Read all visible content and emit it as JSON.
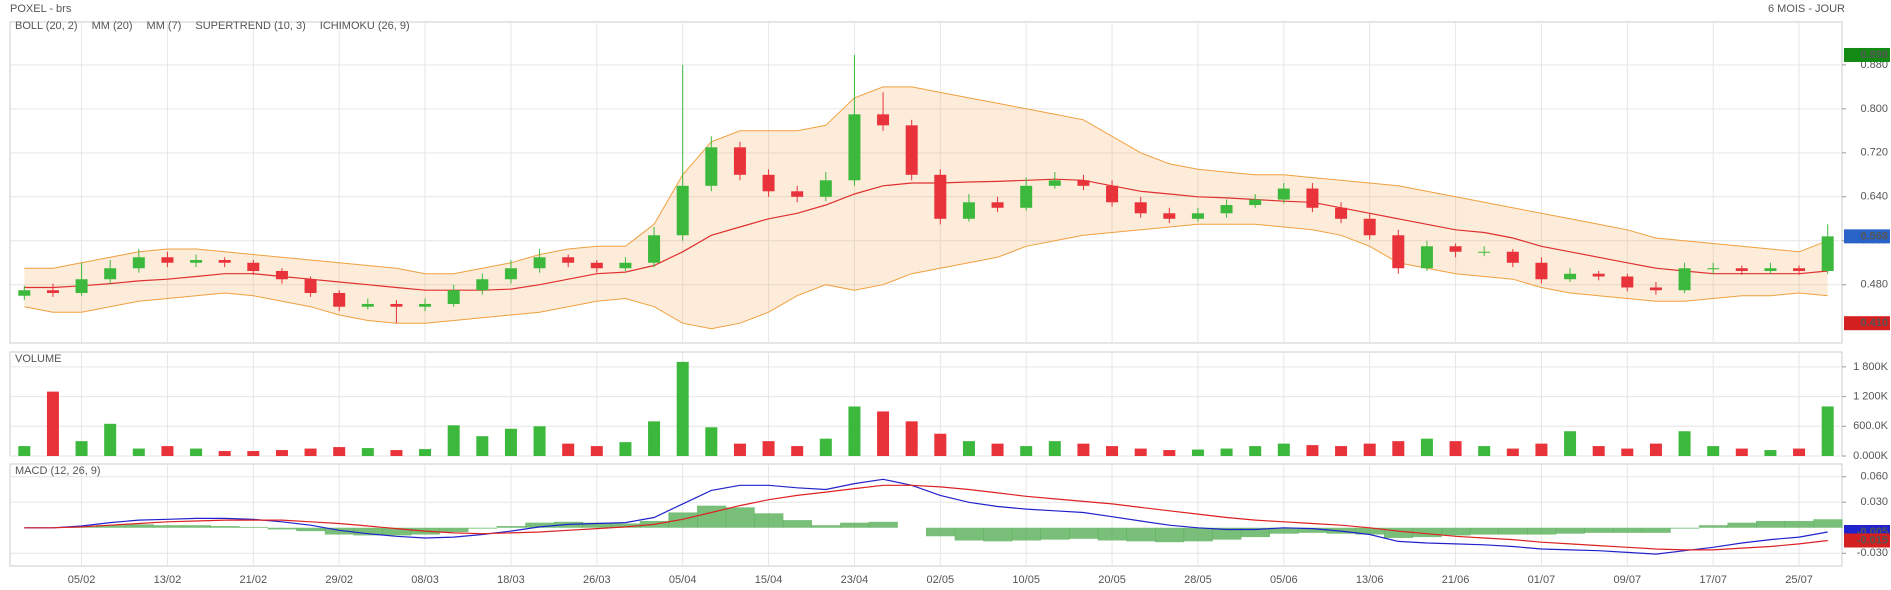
{
  "header": {
    "title": "POXEL - brs",
    "period": "6 MOIS - JOUR"
  },
  "chart_data": [
    {
      "type": "candlestick",
      "categories": [
        null,
        null,
        "05/02",
        null,
        null,
        "13/02",
        null,
        null,
        "21/02",
        null,
        null,
        "29/02",
        null,
        null,
        "08/03",
        null,
        null,
        "18/03",
        null,
        null,
        "26/03",
        null,
        null,
        "05/04",
        null,
        null,
        "15/04",
        null,
        null,
        "23/04",
        null,
        null,
        "02/05",
        null,
        null,
        "10/05",
        null,
        null,
        "20/05",
        null,
        null,
        "28/05",
        null,
        null,
        "05/06",
        null,
        null,
        "13/06",
        null,
        null,
        "21/06",
        null,
        null,
        "01/07",
        null,
        null,
        "09/07",
        null,
        null,
        "17/07",
        null,
        null,
        "25/07",
        null
      ],
      "open": [
        0.46,
        0.47,
        0.465,
        0.49,
        0.51,
        0.53,
        0.52,
        0.525,
        0.52,
        0.505,
        0.49,
        0.465,
        0.44,
        0.445,
        0.44,
        0.445,
        0.47,
        0.49,
        0.51,
        0.53,
        0.52,
        0.51,
        0.52,
        0.57,
        0.66,
        0.73,
        0.68,
        0.65,
        0.64,
        0.67,
        0.79,
        0.77,
        0.68,
        0.6,
        0.63,
        0.62,
        0.66,
        0.67,
        0.66,
        0.63,
        0.61,
        0.6,
        0.61,
        0.625,
        0.635,
        0.655,
        0.62,
        0.6,
        0.57,
        0.51,
        0.55,
        0.54,
        0.54,
        0.52,
        0.49,
        0.5,
        0.495,
        0.475,
        0.47,
        0.51,
        0.51,
        0.505,
        0.51,
        0.505
      ],
      "high": [
        0.478,
        0.482,
        0.52,
        0.525,
        0.545,
        0.54,
        0.535,
        0.53,
        0.525,
        0.51,
        0.495,
        0.47,
        0.455,
        0.452,
        0.455,
        0.48,
        0.5,
        0.525,
        0.545,
        0.535,
        0.525,
        0.53,
        0.585,
        0.88,
        0.75,
        0.74,
        0.69,
        0.66,
        0.685,
        0.898,
        0.83,
        0.78,
        0.69,
        0.645,
        0.64,
        0.675,
        0.685,
        0.68,
        0.67,
        0.64,
        0.62,
        0.62,
        0.635,
        0.645,
        0.665,
        0.665,
        0.63,
        0.61,
        0.58,
        0.56,
        0.555,
        0.55,
        0.545,
        0.53,
        0.51,
        0.505,
        0.5,
        0.485,
        0.52,
        0.52,
        0.515,
        0.52,
        0.515,
        0.59
      ],
      "low": [
        0.452,
        0.458,
        0.46,
        0.482,
        0.502,
        0.512,
        0.512,
        0.512,
        0.498,
        0.482,
        0.458,
        0.432,
        0.435,
        0.41,
        0.432,
        0.44,
        0.462,
        0.482,
        0.502,
        0.512,
        0.502,
        0.505,
        0.512,
        0.56,
        0.65,
        0.67,
        0.64,
        0.63,
        0.632,
        0.66,
        0.76,
        0.67,
        0.59,
        0.595,
        0.612,
        0.615,
        0.655,
        0.652,
        0.622,
        0.602,
        0.592,
        0.595,
        0.602,
        0.62,
        0.628,
        0.612,
        0.592,
        0.562,
        0.5,
        0.505,
        0.53,
        0.532,
        0.512,
        0.482,
        0.485,
        0.488,
        0.468,
        0.462,
        0.465,
        0.5,
        0.498,
        0.5,
        0.498,
        0.5
      ],
      "close": [
        0.47,
        0.465,
        0.49,
        0.51,
        0.53,
        0.52,
        0.525,
        0.52,
        0.505,
        0.49,
        0.465,
        0.44,
        0.445,
        0.44,
        0.445,
        0.47,
        0.49,
        0.51,
        0.53,
        0.52,
        0.51,
        0.52,
        0.57,
        0.66,
        0.73,
        0.68,
        0.65,
        0.64,
        0.67,
        0.79,
        0.77,
        0.68,
        0.6,
        0.63,
        0.62,
        0.66,
        0.67,
        0.66,
        0.63,
        0.61,
        0.6,
        0.61,
        0.625,
        0.635,
        0.655,
        0.62,
        0.6,
        0.57,
        0.51,
        0.55,
        0.54,
        0.54,
        0.52,
        0.49,
        0.5,
        0.495,
        0.475,
        0.47,
        0.51,
        0.51,
        0.505,
        0.51,
        0.505,
        0.568
      ],
      "up_color": "#3cb93c",
      "down_color": "#e8333a",
      "indicators": [
        {
          "name": "BOLL (20, 2)",
          "color": "#f0a040",
          "upper": [
            0.51,
            0.51,
            0.52,
            0.53,
            0.54,
            0.545,
            0.545,
            0.54,
            0.535,
            0.53,
            0.525,
            0.52,
            0.515,
            0.51,
            0.5,
            0.5,
            0.51,
            0.52,
            0.535,
            0.545,
            0.55,
            0.55,
            0.59,
            0.68,
            0.74,
            0.76,
            0.76,
            0.76,
            0.77,
            0.82,
            0.84,
            0.84,
            0.83,
            0.82,
            0.81,
            0.8,
            0.79,
            0.78,
            0.75,
            0.72,
            0.7,
            0.69,
            0.685,
            0.68,
            0.68,
            0.675,
            0.67,
            0.665,
            0.66,
            0.65,
            0.64,
            0.63,
            0.62,
            0.61,
            0.6,
            0.59,
            0.58,
            0.565,
            0.56,
            0.555,
            0.55,
            0.545,
            0.54,
            0.56
          ],
          "lower": [
            0.44,
            0.43,
            0.43,
            0.44,
            0.45,
            0.455,
            0.46,
            0.465,
            0.46,
            0.45,
            0.44,
            0.425,
            0.415,
            0.41,
            0.41,
            0.415,
            0.42,
            0.425,
            0.43,
            0.44,
            0.45,
            0.455,
            0.44,
            0.41,
            0.4,
            0.41,
            0.43,
            0.46,
            0.48,
            0.47,
            0.48,
            0.5,
            0.51,
            0.52,
            0.53,
            0.55,
            0.56,
            0.57,
            0.575,
            0.58,
            0.585,
            0.59,
            0.59,
            0.59,
            0.585,
            0.58,
            0.57,
            0.55,
            0.52,
            0.51,
            0.5,
            0.495,
            0.49,
            0.475,
            0.465,
            0.46,
            0.455,
            0.45,
            0.45,
            0.455,
            0.46,
            0.46,
            0.465,
            0.46
          ]
        },
        {
          "name": "MM (20)",
          "color": "#e03030",
          "values": [
            0.475,
            0.475,
            0.478,
            0.482,
            0.487,
            0.49,
            0.495,
            0.5,
            0.5,
            0.495,
            0.49,
            0.485,
            0.48,
            0.475,
            0.47,
            0.47,
            0.47,
            0.472,
            0.48,
            0.49,
            0.5,
            0.503,
            0.515,
            0.54,
            0.57,
            0.585,
            0.6,
            0.61,
            0.625,
            0.645,
            0.66,
            0.665,
            0.665,
            0.667,
            0.668,
            0.67,
            0.672,
            0.67,
            0.66,
            0.65,
            0.645,
            0.64,
            0.638,
            0.635,
            0.632,
            0.63,
            0.62,
            0.61,
            0.6,
            0.59,
            0.58,
            0.575,
            0.565,
            0.55,
            0.54,
            0.53,
            0.52,
            0.51,
            0.505,
            0.5,
            0.5,
            0.5,
            0.5,
            0.505
          ]
        },
        {
          "name": "MM (7)",
          "color": "#e03030"
        },
        {
          "name": "SUPERTREND (10, 3)",
          "color": "#cc0000"
        },
        {
          "name": "ICHIMOKU (26, 9)",
          "color": "#3333cc"
        }
      ],
      "ylim": [
        0.374,
        0.958
      ],
      "yticks": [
        {
          "value": 0.48,
          "label": "0.480"
        },
        {
          "value": 0.56,
          "label": "0.560"
        },
        {
          "value": 0.64,
          "label": "0.640"
        },
        {
          "value": 0.72,
          "label": "0.720"
        },
        {
          "value": 0.8,
          "label": "0.800"
        },
        {
          "value": 0.88,
          "label": "0.880"
        }
      ],
      "price_labels": [
        {
          "value": 0.898,
          "label": "0.898",
          "color": "#138a13"
        },
        {
          "value": 0.568,
          "label": "0.568",
          "color": "#2a63c8"
        },
        {
          "value": 0.41,
          "label": "0.410",
          "color": "#d42020"
        }
      ],
      "grid": true
    },
    {
      "type": "volume",
      "title": "VOLUME",
      "title_color": "#3cb93c",
      "values": [
        200000,
        1300000,
        300000,
        650000,
        150000,
        200000,
        150000,
        100000,
        100000,
        120000,
        150000,
        180000,
        160000,
        120000,
        140000,
        620000,
        400000,
        550000,
        600000,
        250000,
        200000,
        280000,
        700000,
        1900000,
        580000,
        250000,
        300000,
        200000,
        350000,
        1000000,
        900000,
        700000,
        450000,
        300000,
        250000,
        200000,
        300000,
        250000,
        200000,
        150000,
        120000,
        130000,
        150000,
        200000,
        250000,
        220000,
        200000,
        250000,
        300000,
        350000,
        300000,
        200000,
        150000,
        250000,
        500000,
        200000,
        150000,
        250000,
        500000,
        200000,
        150000,
        120000,
        150000,
        1000000
      ],
      "ylim": [
        0,
        2100000
      ],
      "yticks": [
        {
          "value": 0,
          "label": "0.000K"
        },
        {
          "value": 600000,
          "label": "600.0K"
        },
        {
          "value": 1200000,
          "label": "1 200K"
        },
        {
          "value": 1800000,
          "label": "1 800K"
        }
      ],
      "grid": true
    },
    {
      "type": "macd",
      "title": "MACD (12, 26, 9)",
      "title_color": "#3333cc",
      "series": [
        {
          "color": "#2222cc",
          "values": [
            0,
            0,
            0.002,
            0.006,
            0.009,
            0.01,
            0.011,
            0.011,
            0.01,
            0.007,
            0.003,
            -0.003,
            -0.007,
            -0.01,
            -0.012,
            -0.011,
            -0.008,
            -0.004,
            0.001,
            0.004,
            0.005,
            0.006,
            0.012,
            0.028,
            0.044,
            0.05,
            0.05,
            0.047,
            0.045,
            0.052,
            0.057,
            0.05,
            0.038,
            0.03,
            0.025,
            0.022,
            0.02,
            0.018,
            0.013,
            0.008,
            0.003,
            0,
            -0.002,
            -0.002,
            0,
            -0.001,
            -0.004,
            -0.008,
            -0.016,
            -0.018,
            -0.019,
            -0.02,
            -0.022,
            -0.025,
            -0.026,
            -0.027,
            -0.029,
            -0.031,
            -0.027,
            -0.023,
            -0.018,
            -0.014,
            -0.011,
            -0.005
          ]
        },
        {
          "color": "#dd2222",
          "values": [
            0,
            0,
            0.001,
            0.003,
            0.005,
            0.007,
            0.008,
            0.009,
            0.009,
            0.009,
            0.007,
            0.005,
            0.002,
            -0.001,
            -0.004,
            -0.006,
            -0.007,
            -0.006,
            -0.005,
            -0.003,
            -0.001,
            0.001,
            0.004,
            0.01,
            0.018,
            0.026,
            0.033,
            0.038,
            0.042,
            0.046,
            0.05,
            0.05,
            0.048,
            0.045,
            0.041,
            0.037,
            0.034,
            0.031,
            0.028,
            0.024,
            0.02,
            0.016,
            0.012,
            0.009,
            0.007,
            0.005,
            0.003,
            0,
            -0.004,
            -0.007,
            -0.01,
            -0.012,
            -0.014,
            -0.017,
            -0.019,
            -0.021,
            -0.023,
            -0.025,
            -0.026,
            -0.026,
            -0.024,
            -0.022,
            -0.019,
            -0.015
          ]
        }
      ],
      "histogram": {
        "color": "#4caa4c",
        "values": [
          0,
          0,
          0.001,
          0.003,
          0.004,
          0.003,
          0.003,
          0.002,
          0.001,
          -0.002,
          -0.004,
          -0.008,
          -0.009,
          -0.009,
          -0.008,
          -0.005,
          -0.001,
          0.002,
          0.006,
          0.007,
          0.006,
          0.005,
          0.008,
          0.018,
          0.026,
          0.024,
          0.017,
          0.009,
          0.003,
          0.006,
          0.007,
          0,
          -0.01,
          -0.015,
          -0.016,
          -0.015,
          -0.014,
          -0.013,
          -0.015,
          -0.016,
          -0.017,
          -0.016,
          -0.014,
          -0.011,
          -0.007,
          -0.006,
          -0.007,
          -0.008,
          -0.012,
          -0.011,
          -0.009,
          -0.008,
          -0.008,
          -0.008,
          -0.007,
          -0.006,
          -0.006,
          -0.006,
          -0.001,
          0.003,
          0.006,
          0.008,
          0.008,
          0.01
        ]
      },
      "ylim": [
        -0.045,
        0.075
      ],
      "yticks": [
        {
          "value": 0.06,
          "label": "0.060"
        },
        {
          "value": 0.03,
          "label": "0.030"
        },
        {
          "value": -0.03,
          "label": "-0.030"
        }
      ],
      "price_labels": [
        {
          "value": -0.005,
          "label": "-0.005",
          "color": "#2222cc"
        },
        {
          "value": -0.015,
          "label": "-0.015",
          "color": "#d42020"
        }
      ],
      "grid": true
    }
  ]
}
